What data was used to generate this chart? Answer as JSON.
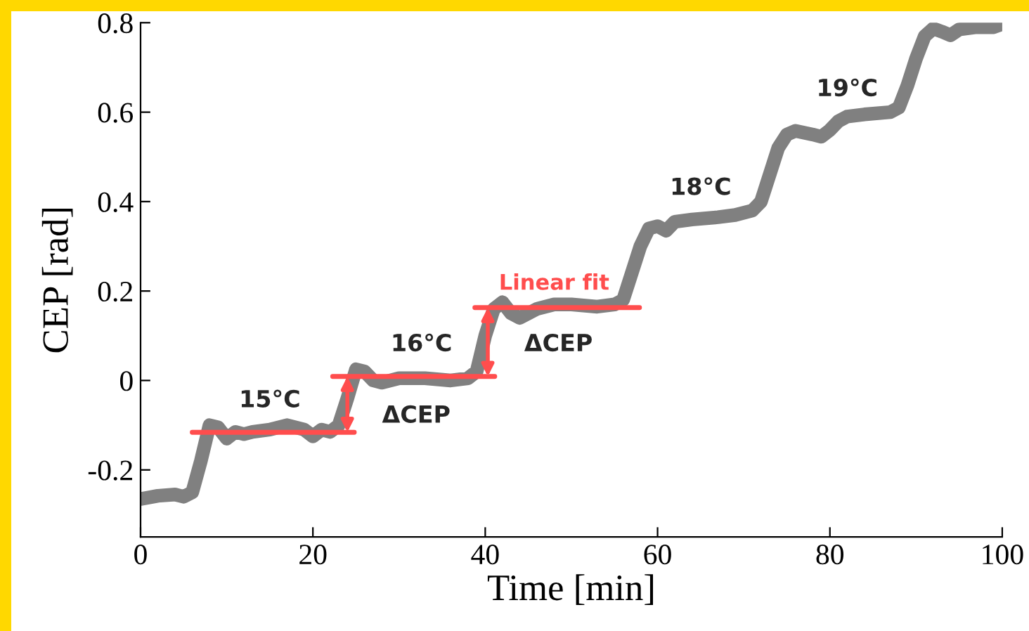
{
  "chart_data": {
    "type": "line",
    "xlabel": "Time [min]",
    "ylabel": "CEP [rad]",
    "xlim": [
      0,
      100
    ],
    "xticks": [
      0,
      20,
      40,
      60,
      80,
      100
    ],
    "ylim": [
      -0.35,
      0.8
    ],
    "yticks": [
      {
        "value": -0.2,
        "label": "-0.2"
      },
      0,
      0.2,
      0.4,
      0.6,
      0.8
    ],
    "grid": false,
    "legend": false,
    "series": [
      {
        "color": "#808080",
        "x": [
          0,
          2,
          4,
          5,
          6,
          7,
          8,
          9,
          10,
          11,
          12,
          13,
          15,
          17,
          19,
          20,
          21,
          22,
          23,
          24,
          25,
          26,
          27,
          28,
          30,
          33,
          36,
          38,
          39,
          40,
          41,
          42,
          43,
          44,
          46,
          48,
          50,
          53,
          55,
          56,
          57,
          58,
          59,
          60,
          61,
          62,
          64,
          67,
          69,
          71,
          72,
          73,
          74,
          75,
          76,
          78,
          79,
          80,
          81,
          82,
          84,
          87,
          88,
          89,
          90,
          91,
          92,
          93,
          94,
          95,
          97,
          99,
          100
        ],
        "values": [
          -0.265,
          -0.258,
          -0.255,
          -0.26,
          -0.25,
          -0.18,
          -0.1,
          -0.105,
          -0.13,
          -0.115,
          -0.12,
          -0.115,
          -0.11,
          -0.1,
          -0.11,
          -0.125,
          -0.11,
          -0.115,
          -0.1,
          -0.04,
          0.025,
          0.02,
          0.0,
          -0.005,
          0.005,
          0.005,
          0.0,
          0.005,
          0.02,
          0.1,
          0.16,
          0.175,
          0.15,
          0.14,
          0.16,
          0.17,
          0.17,
          0.165,
          0.17,
          0.18,
          0.24,
          0.3,
          0.34,
          0.345,
          0.335,
          0.355,
          0.36,
          0.365,
          0.37,
          0.38,
          0.4,
          0.46,
          0.52,
          0.55,
          0.558,
          0.55,
          0.545,
          0.56,
          0.58,
          0.59,
          0.595,
          0.6,
          0.61,
          0.66,
          0.72,
          0.77,
          0.787,
          0.78,
          0.772,
          0.785,
          0.79,
          0.79,
          0.797
        ]
      },
      {
        "name": "Linear fit",
        "color": "#ff4d4d",
        "x": [
          6,
          24.8,
          null,
          22.3,
          41.1,
          null,
          38.8,
          57.9
        ],
        "values": [
          -0.116,
          -0.116,
          null,
          0.009,
          0.009,
          null,
          0.163,
          0.163
        ]
      }
    ],
    "annotations": [
      "15°C",
      "ΔCEP",
      "16°C",
      "ΔCEP",
      "18°C",
      "19°C"
    ]
  }
}
